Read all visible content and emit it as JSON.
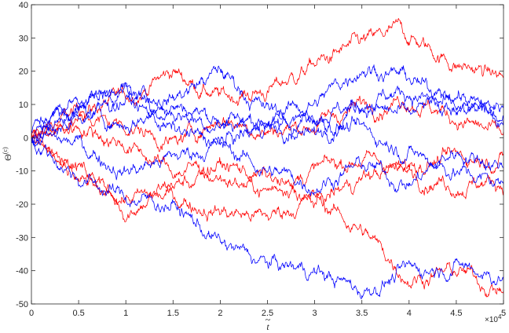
{
  "chart_data": {
    "type": "line",
    "title": "",
    "xlabel": "t",
    "xlabel_accent": "~",
    "ylabel_base": "Θ",
    "ylabel_sup": "(c)",
    "x_exponent_label": "×10",
    "x_exponent_power": "4",
    "xlim": [
      0,
      5
    ],
    "ylim": [
      -50,
      40
    ],
    "x_ticks": [
      0,
      0.5,
      1,
      1.5,
      2,
      2.5,
      3,
      3.5,
      4,
      4.5,
      5
    ],
    "y_ticks": [
      40,
      30,
      20,
      10,
      0,
      -10,
      -20,
      -30,
      -40,
      -50
    ],
    "grid": false,
    "box": true,
    "colors": {
      "red": "#ff0000",
      "blue": "#0000ff",
      "axis": "#262626"
    },
    "series": [
      {
        "color": "red",
        "x": [
          0,
          0.5,
          1,
          1.5,
          2,
          2.5,
          3,
          3.5,
          3.9,
          4.5,
          5
        ],
        "values": [
          0,
          8,
          12,
          20,
          12,
          14,
          22,
          28,
          32,
          22,
          18
        ]
      },
      {
        "color": "red",
        "x": [
          0,
          0.5,
          1,
          1.5,
          2,
          2.5,
          3,
          3.5,
          4,
          4.5,
          5
        ],
        "values": [
          0,
          -8,
          -22,
          -14,
          -12,
          -16,
          -10,
          -6,
          -10,
          -14,
          -13
        ]
      },
      {
        "color": "red",
        "x": [
          0,
          0.5,
          1,
          1.5,
          2,
          2.5,
          3,
          3.5,
          4,
          4.5,
          5
        ],
        "values": [
          0,
          -14,
          -18,
          -18,
          -22,
          -24,
          -18,
          -28,
          -42,
          -40,
          -46
        ]
      },
      {
        "color": "red",
        "x": [
          0,
          0.5,
          1,
          1.5,
          2,
          2.5,
          3,
          3.5,
          4,
          4.5,
          5
        ],
        "values": [
          0,
          4,
          -2,
          -10,
          -8,
          -12,
          -20,
          -12,
          -8,
          -6,
          -6
        ]
      },
      {
        "color": "red",
        "x": [
          0,
          0.5,
          1,
          1.5,
          2,
          2.5,
          3,
          3.5,
          4,
          4.5,
          5
        ],
        "values": [
          0,
          6,
          4,
          -2,
          6,
          2,
          4,
          10,
          12,
          6,
          0
        ]
      },
      {
        "color": "blue",
        "x": [
          0,
          0.5,
          1,
          1.5,
          2,
          2.5,
          3,
          3.5,
          4,
          4.5,
          5
        ],
        "values": [
          0,
          10,
          14,
          12,
          20,
          8,
          10,
          22,
          18,
          8,
          10
        ]
      },
      {
        "color": "blue",
        "x": [
          0,
          0.5,
          1,
          1.5,
          2,
          2.5,
          3,
          3.5,
          4,
          4.5,
          5
        ],
        "values": [
          0,
          -12,
          -18,
          -20,
          -32,
          -38,
          -40,
          -46,
          -40,
          -38,
          -42
        ]
      },
      {
        "color": "blue",
        "x": [
          0,
          0.5,
          1,
          1.5,
          2,
          2.5,
          3,
          3.5,
          4,
          4.5,
          5
        ],
        "values": [
          2,
          12,
          14,
          8,
          4,
          6,
          0,
          12,
          14,
          8,
          6
        ]
      },
      {
        "color": "blue",
        "x": [
          0,
          0.5,
          1,
          1.5,
          2,
          2.5,
          3,
          3.5,
          4,
          4.5,
          5
        ],
        "values": [
          0,
          -2,
          -10,
          -6,
          -2,
          -10,
          -14,
          -8,
          -14,
          -4,
          -8
        ]
      },
      {
        "color": "blue",
        "x": [
          0,
          0.5,
          1,
          1.5,
          2,
          2.5,
          3,
          3.5,
          4,
          4.5,
          5
        ],
        "values": [
          0,
          6,
          12,
          2,
          -2,
          4,
          6,
          2,
          -4,
          -10,
          -14
        ]
      },
      {
        "color": "blue",
        "x": [
          0,
          0.5,
          1,
          1.5,
          2,
          2.5,
          3,
          3.5,
          4,
          4.5,
          5
        ],
        "values": [
          0,
          8,
          4,
          10,
          6,
          2,
          8,
          10,
          6,
          14,
          4
        ]
      }
    ]
  }
}
